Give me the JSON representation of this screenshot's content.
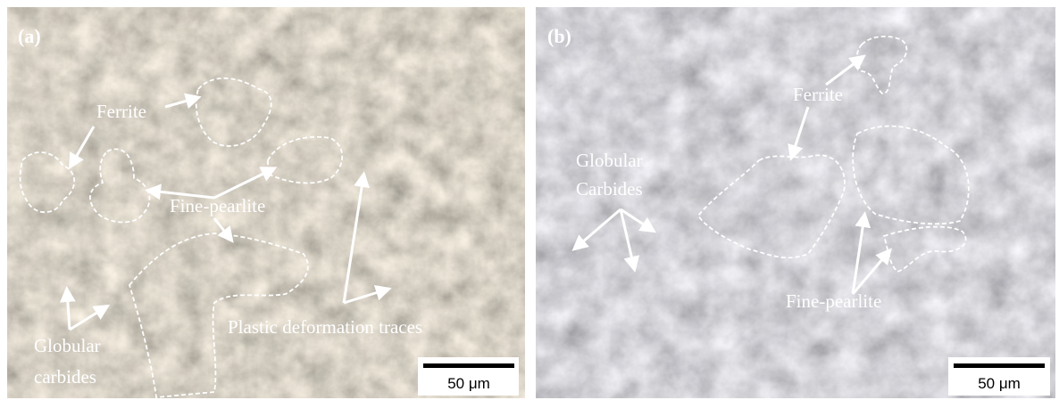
{
  "panels": [
    {
      "label": "(a)",
      "annotations": [
        {
          "lines": [
            "Ferrite"
          ]
        },
        {
          "lines": [
            "Fine-pearlite"
          ]
        },
        {
          "lines": [
            "Plastic deformation traces"
          ]
        },
        {
          "lines": [
            "Globular",
            "carbides"
          ]
        }
      ],
      "scale_bar": "50 μm"
    },
    {
      "label": "(b)",
      "annotations": [
        {
          "lines": [
            "Ferrite"
          ]
        },
        {
          "lines": [
            "Globular",
            "Carbides"
          ]
        },
        {
          "lines": [
            "Fine-pearlite"
          ]
        }
      ],
      "scale_bar": "50 μm"
    }
  ]
}
